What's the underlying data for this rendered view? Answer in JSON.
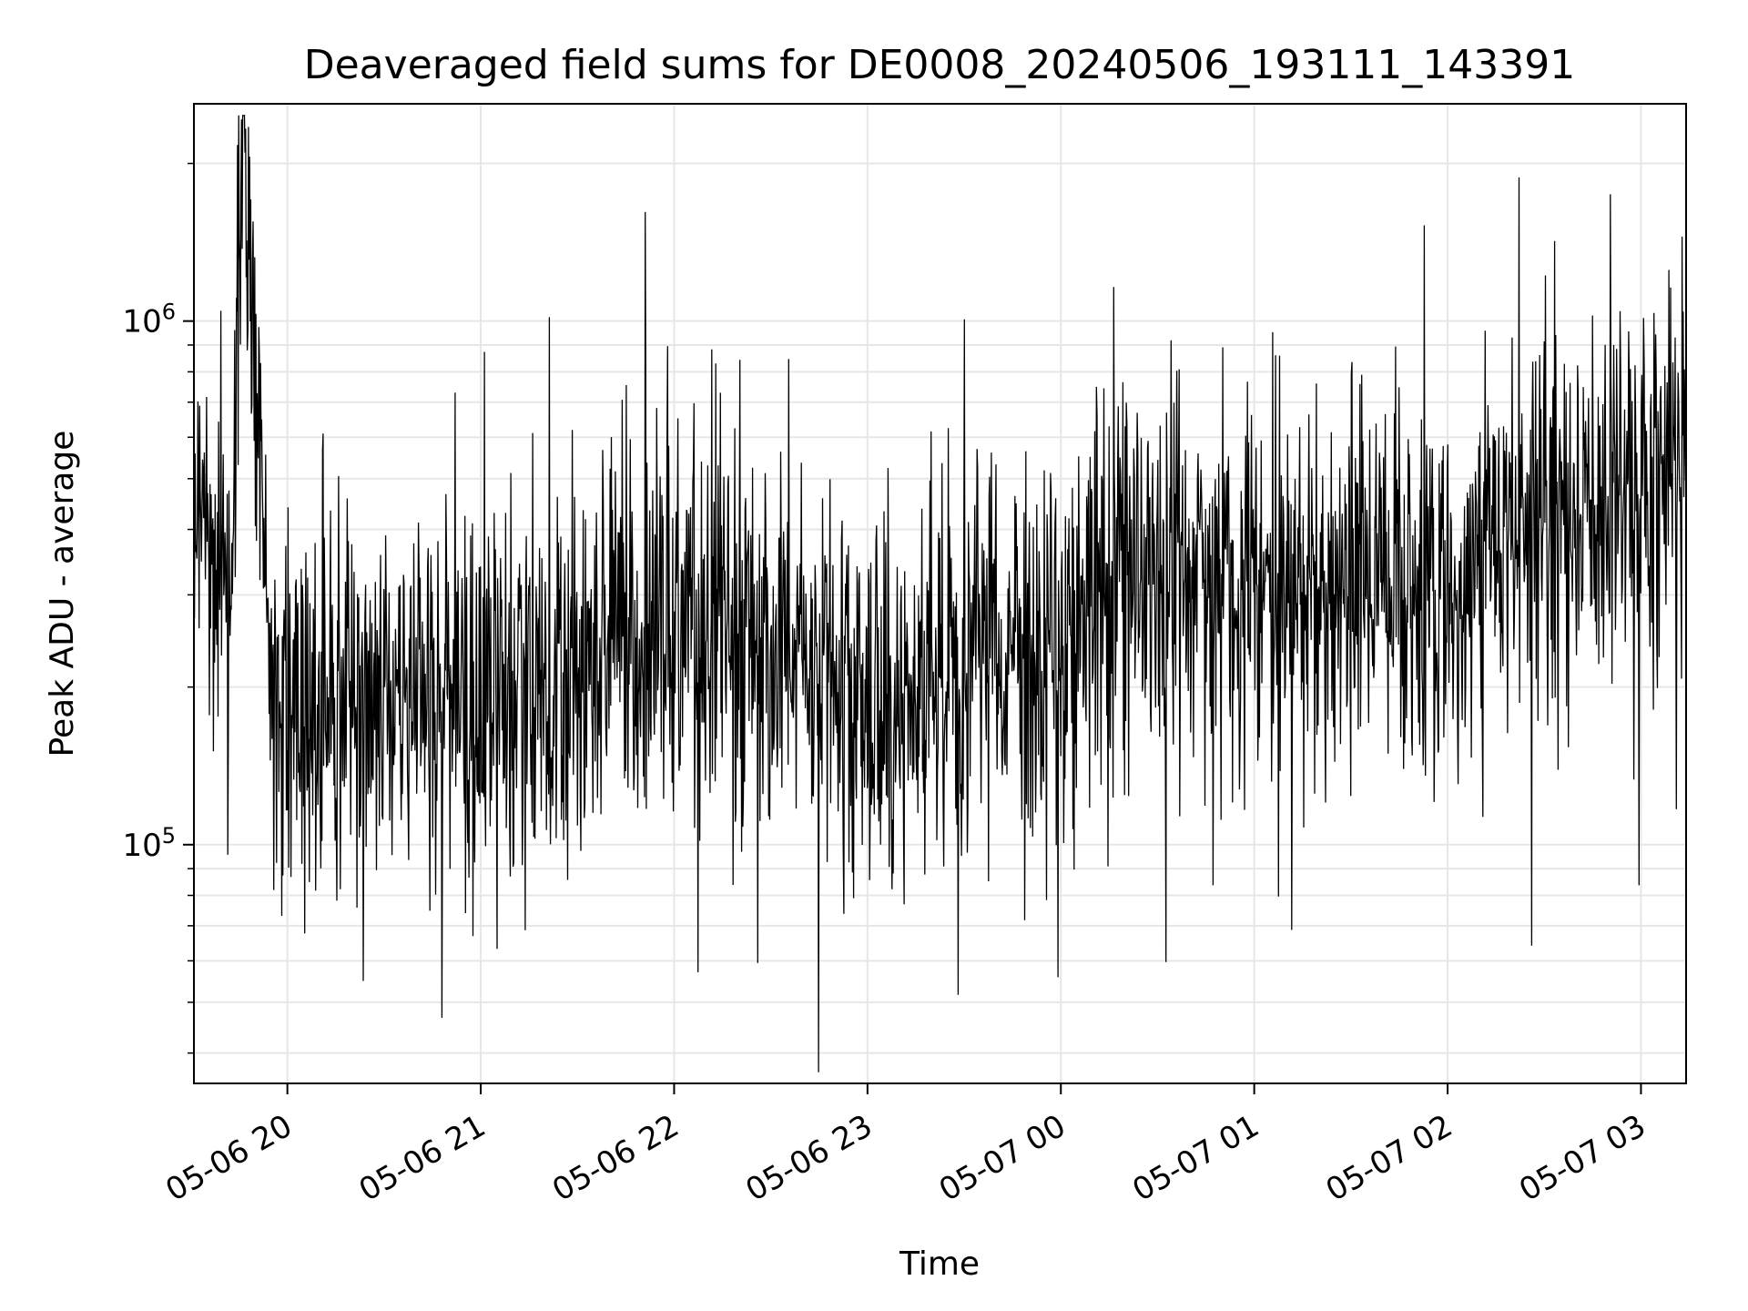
{
  "chart_data": {
    "type": "line",
    "title": "Deaveraged field sums for DE0008_20240506_193111_143391",
    "xlabel": "Time",
    "ylabel": "Peak ADU - average",
    "x_scale": "time",
    "y_scale": "log",
    "xlim": [
      "2024-05-06 19:31",
      "2024-05-07 03:14"
    ],
    "ylim": [
      35000,
      2600000
    ],
    "x_ticks": [
      "05-06 20",
      "05-06 21",
      "05-06 22",
      "05-06 23",
      "05-07 00",
      "05-07 01",
      "05-07 02",
      "05-07 03"
    ],
    "y_ticks": [
      {
        "base": "10",
        "exp": "5",
        "value": 100000
      },
      {
        "base": "10",
        "exp": "6",
        "value": 1000000
      }
    ],
    "grid": true,
    "legend": "none",
    "line_color": "#000000",
    "series": [
      {
        "name": "",
        "x": [
          "2024-05-06 19:31",
          "2024-05-06 19:42",
          "2024-05-06 19:47",
          "2024-05-06 19:55",
          "2024-05-06 20:00",
          "2024-05-06 20:10",
          "2024-05-06 20:20",
          "2024-05-06 20:30",
          "2024-05-06 20:40",
          "2024-05-06 20:50",
          "2024-05-06 21:00",
          "2024-05-06 21:10",
          "2024-05-06 21:20",
          "2024-05-06 21:30",
          "2024-05-06 21:40",
          "2024-05-06 21:50",
          "2024-05-06 22:00",
          "2024-05-06 22:10",
          "2024-05-06 22:20",
          "2024-05-06 22:30",
          "2024-05-06 22:40",
          "2024-05-06 22:50",
          "2024-05-06 23:00",
          "2024-05-06 23:10",
          "2024-05-06 23:20",
          "2024-05-06 23:30",
          "2024-05-06 23:40",
          "2024-05-06 23:50",
          "2024-05-07 00:00",
          "2024-05-07 00:10",
          "2024-05-07 00:20",
          "2024-05-07 00:30",
          "2024-05-07 00:40",
          "2024-05-07 00:50",
          "2024-05-07 01:00",
          "2024-05-07 01:10",
          "2024-05-07 01:20",
          "2024-05-07 01:30",
          "2024-05-07 01:40",
          "2024-05-07 01:50",
          "2024-05-07 02:00",
          "2024-05-07 02:10",
          "2024-05-07 02:20",
          "2024-05-07 02:30",
          "2024-05-07 02:40",
          "2024-05-07 02:50",
          "2024-05-07 03:00",
          "2024-05-07 03:14"
        ],
        "y": [
          500000,
          280000,
          2200000,
          200000,
          190000,
          170000,
          210000,
          180000,
          190000,
          200000,
          210000,
          220000,
          200000,
          190000,
          230000,
          240000,
          260000,
          280000,
          240000,
          220000,
          250000,
          200000,
          190000,
          180000,
          200000,
          230000,
          250000,
          230000,
          220000,
          300000,
          320000,
          310000,
          330000,
          300000,
          320000,
          310000,
          300000,
          300000,
          290000,
          310000,
          300000,
          320000,
          380000,
          420000,
          400000,
          410000,
          500000,
          520000
        ]
      }
    ]
  }
}
